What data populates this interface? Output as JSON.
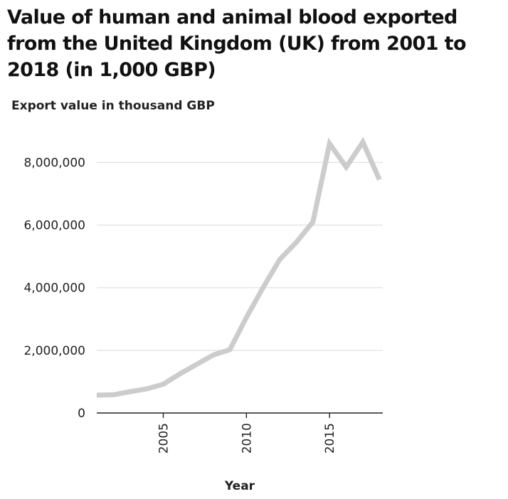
{
  "chart_data": {
    "type": "line",
    "title": "Value of human and animal blood exported from the United Kingdom (UK) from 2001 to 2018 (in 1,000 GBP)",
    "xlabel": "Year",
    "ylabel": "Export value in thousand GBP",
    "x": [
      2001,
      2002,
      2003,
      2004,
      2005,
      2006,
      2007,
      2008,
      2009,
      2010,
      2011,
      2012,
      2013,
      2014,
      2015,
      2016,
      2017,
      2018
    ],
    "series": [
      {
        "values": [
          570000,
          580000,
          680000,
          770000,
          920000,
          1250000,
          1550000,
          1850000,
          2020000,
          3050000,
          4000000,
          4900000,
          5450000,
          6100000,
          8600000,
          7850000,
          8650000,
          7450000
        ]
      }
    ],
    "xlim": [
      2001,
      2018.2
    ],
    "ylim": [
      0,
      9100000
    ],
    "x_ticks": [
      {
        "value": 2005,
        "label": "2005"
      },
      {
        "value": 2010,
        "label": "2010"
      },
      {
        "value": 2015,
        "label": "2015"
      }
    ],
    "y_ticks": [
      {
        "value": 0,
        "label": "0"
      },
      {
        "value": 2000000,
        "label": "2,000,000"
      },
      {
        "value": 4000000,
        "label": "4,000,000"
      },
      {
        "value": 6000000,
        "label": "6,000,000"
      },
      {
        "value": 8000000,
        "label": "8,000,000"
      }
    ],
    "grid": "horizontal",
    "line_color": "#cccccc",
    "grid_color": "#e0e0e0",
    "axis_color": "#222222"
  }
}
